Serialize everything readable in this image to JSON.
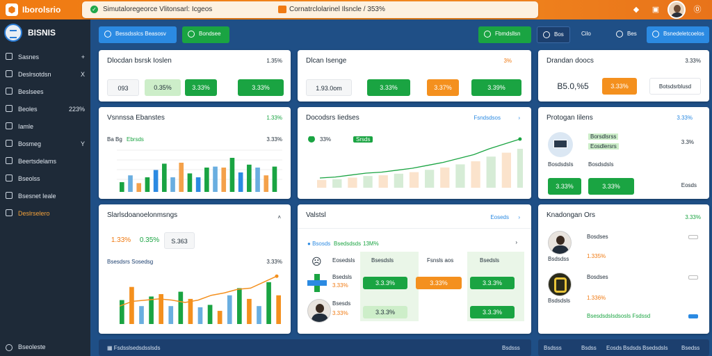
{
  "topbar": {
    "brand": "Iborolsrio",
    "notice_text": "Simutaloregeorce Vlitonsarl: Icgeos",
    "notice_text2": "Cornatrclolarinel Ilsncle / 353%",
    "icons": [
      "bell-icon",
      "clipboard-icon",
      "info-icon"
    ]
  },
  "sidebar": {
    "brand": "BISNIS",
    "items": [
      {
        "label": "Sasnes",
        "right": "+",
        "icon": "search-icon"
      },
      {
        "label": "Deslrsotdsn",
        "right": "X",
        "icon": "chat-icon"
      },
      {
        "label": "Beslsees",
        "right": "",
        "icon": "grid-icon"
      },
      {
        "label": "Beoles",
        "right": "223%",
        "icon": "table-icon"
      },
      {
        "label": "Iamle",
        "right": "",
        "icon": "doc-icon"
      },
      {
        "label": "Bosmeg",
        "right": "Y",
        "icon": "chat-icon"
      },
      {
        "label": "Beertsdelams",
        "right": "",
        "icon": "calendar-icon"
      },
      {
        "label": "Bseolss",
        "right": "",
        "icon": "box-icon"
      },
      {
        "label": "Bsesnet Ieale",
        "right": "",
        "icon": "list-icon"
      },
      {
        "label": "Deslrselero",
        "right": "",
        "icon": "info-icon"
      }
    ],
    "footer": "Bseoleste"
  },
  "toolbar": {
    "left1": "Bessdsslcs Beasosv",
    "left2": "Bondsee",
    "r1": "Fbmdsllsn",
    "r2": "Bos",
    "r3": "Cilo",
    "r4": "Bes",
    "r5": "Bsnedeletcoelos"
  },
  "kpis": [
    {
      "title": "Dlocdan bsrsk Ioslen",
      "pct": "1.35%",
      "v1": "093",
      "v2": "0.35%",
      "v3": "3.33%",
      "v4": "3.33%"
    },
    {
      "title": "Dlcan Isenge",
      "pct": "3%",
      "v1": "1.93.0om",
      "v2": "3.33%",
      "v3": "3.37%",
      "v4": "3.39%"
    },
    {
      "title": "Drandan doocs",
      "pct": "3.33%",
      "v1": "B5.0,%5",
      "v2": "3.33%",
      "v3": "Botsdsrblusd"
    }
  ],
  "chart1": {
    "title": "Vsnnssa Ebanstes",
    "pct": "1.33%",
    "sub": "Ba Bg",
    "sub2": "Ebrsds",
    "sub3": "3.33%"
  },
  "chart2": {
    "title": "Docodsrs Iiedses",
    "link": "Fsndsdsos",
    "badge": "33%",
    "badge2": "Srsds"
  },
  "prod": {
    "title": "Protogan Iilens",
    "pct": "3.33%",
    "tag1": "Borsdlsrss",
    "tag2": "Eosdlersrs",
    "n1": "3.3%",
    "cap1": "Bosdsdsls",
    "cap2": "Bosdsdsls",
    "b1": "3.33%",
    "b2": "3.33%",
    "link": "Eosds"
  },
  "chart3": {
    "title": "Slarlsdoanoelonmsngs",
    "v1": "1.33%",
    "v2": "0.35%",
    "v3": "S.363",
    "sub": "Bsesdsrs Sosedsg",
    "pct": "3.33%"
  },
  "table": {
    "title": "Valstsl",
    "link": "Eoseds",
    "head": "Bsosds",
    "head2": "Bsedsdsds",
    "head3": "13M%",
    "cols": [
      "Bsesdsls",
      "Fsnsls aos",
      "Bsedsls"
    ],
    "rows": [
      {
        "name": "Eosedsls",
        "a": "",
        "b": "",
        "c": ""
      },
      {
        "name": "Bsedsls",
        "pct": "3.33%",
        "a": "3.3.3%",
        "b": "3.33%",
        "c": "3.3.3%"
      },
      {
        "name": "Bsesds",
        "pct": "3.33%",
        "a": "3.3.3%",
        "b": "",
        "c": "3.3.3%"
      }
    ]
  },
  "orders": {
    "title": "Knadongan Ors",
    "pct": "3.33%",
    "rows": [
      {
        "name": "Bosdses",
        "pct": "1.335%",
        "cap": "Bsdsdss"
      },
      {
        "name": "Bosdses",
        "pct": "1.336%",
        "cap": "Bsdsdsls"
      }
    ],
    "note": "Bsesdsdslsdsosls Fsdssd"
  },
  "bottom": {
    "left": "Fsdsslsedsdsslsds",
    "right": "Bsdsss",
    "r1": "Bsdsss",
    "r2": "Bsdss",
    "r3": "Eosds",
    "r4": "Bsdsds",
    "r5": "Bsedsdsls",
    "r6": "Bsedss"
  },
  "chart_data": [
    {
      "type": "bar",
      "values": [
        20,
        34,
        18,
        30,
        45,
        58,
        30,
        60,
        38,
        30,
        50,
        52,
        50,
        70,
        40,
        56,
        50,
        34,
        52
      ],
      "ylim": [
        0,
        100
      ]
    },
    {
      "type": "line",
      "values": [
        20,
        22,
        26,
        30,
        32,
        36,
        40,
        46,
        52,
        60,
        68,
        80,
        90,
        100
      ]
    },
    {
      "type": "bar",
      "values": [
        40,
        62,
        30,
        46,
        50,
        30,
        54,
        42,
        28,
        32,
        22,
        48,
        60,
        42,
        30,
        70,
        48
      ],
      "line": [
        30,
        38,
        40,
        42,
        40,
        36,
        40,
        48,
        52,
        58,
        60,
        70,
        80
      ]
    }
  ]
}
